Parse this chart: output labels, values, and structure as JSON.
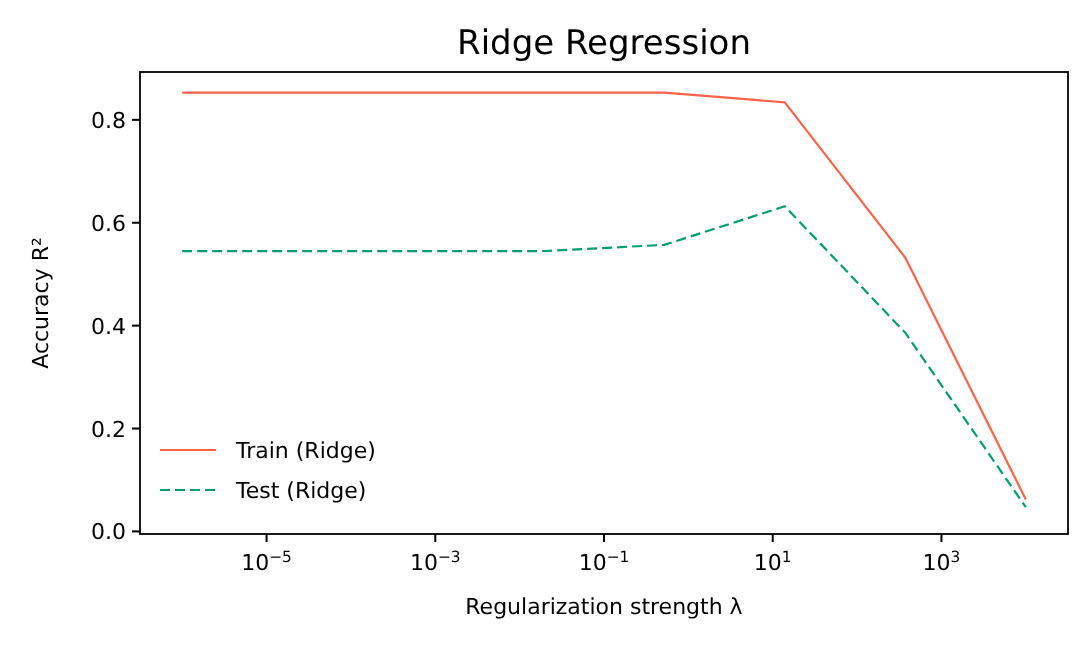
{
  "chart_data": {
    "type": "line",
    "title": "Ridge Regression",
    "xlabel": "Regularization strength λ",
    "ylabel": "Accuracy R²",
    "log": "x",
    "x": [
      1e-06,
      2.68e-05,
      0.00072,
      0.0193,
      0.518,
      13.9,
      373,
      10000
    ],
    "series": [
      {
        "name": "Train (Ridge)",
        "color": "#ff6347",
        "line_style": "solid",
        "values": [
          0.853,
          0.853,
          0.853,
          0.853,
          0.853,
          0.834,
          0.532,
          0.062
        ]
      },
      {
        "name": "Test (Ridge)",
        "color": "#009e73",
        "line_style": "dashed",
        "values": [
          0.545,
          0.545,
          0.545,
          0.545,
          0.557,
          0.632,
          0.386,
          0.047
        ]
      }
    ],
    "xlim": [
      3.16e-07,
      31623
    ],
    "ylim": [
      -0.005,
      0.893
    ],
    "xticks": [
      {
        "value": 1e-05,
        "label": "10$^{−5}$"
      },
      {
        "value": 0.001,
        "label": "10$^{−3}$"
      },
      {
        "value": 0.1,
        "label": "10$^{−1}$"
      },
      {
        "value": 10,
        "label": "10$^{1}$"
      },
      {
        "value": 1000,
        "label": "10$^{3}$"
      }
    ],
    "yticks": [
      {
        "value": 0,
        "label": "0.0"
      },
      {
        "value": 0.2,
        "label": "0.2"
      },
      {
        "value": 0.4,
        "label": "0.4"
      },
      {
        "value": 0.6,
        "label": "0.6"
      },
      {
        "value": 0.8,
        "label": "0.8"
      }
    ],
    "grid": false,
    "legend": "bottom left",
    "marker": "none"
  }
}
